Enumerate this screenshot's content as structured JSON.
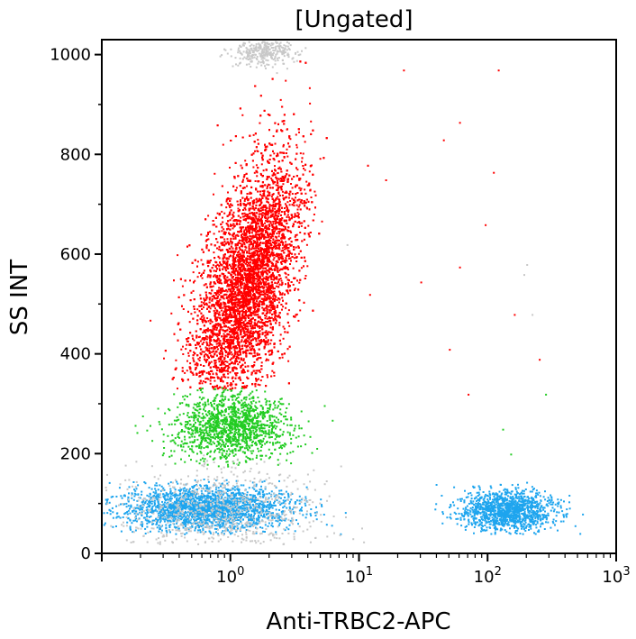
{
  "chart_data": {
    "type": "scatter",
    "title": "[Ungated]",
    "xlabel": "Anti-TRBC2-APC",
    "ylabel": "SS INT",
    "x_scale": "log",
    "xlim": [
      0.1,
      1000
    ],
    "ylim": [
      0,
      1030
    ],
    "x_ticks": [
      {
        "value": 1,
        "base": "10",
        "exp": "0"
      },
      {
        "value": 10,
        "base": "10",
        "exp": "1"
      },
      {
        "value": 100,
        "base": "10",
        "exp": "2"
      },
      {
        "value": 1000,
        "base": "10",
        "exp": "3"
      }
    ],
    "y_ticks": [
      {
        "value": 0,
        "label": "0"
      },
      {
        "value": 200,
        "label": "200"
      },
      {
        "value": 400,
        "label": "400"
      },
      {
        "value": 600,
        "label": "600"
      },
      {
        "value": 800,
        "label": "800"
      },
      {
        "value": 1000,
        "label": "1000"
      }
    ],
    "grid": false,
    "legend": "none",
    "populations": [
      {
        "color": "#ff0000",
        "n": 9000,
        "log_x_center": 0.12,
        "log_x_sd": 0.17,
        "y_center": 540,
        "y_sd": 125,
        "y_range": [
          330,
          1030
        ],
        "tilt": 0.0009
      },
      {
        "color": "#22cc22",
        "n": 1400,
        "log_x_center": 0.0,
        "log_x_sd": 0.22,
        "y_center": 255,
        "y_sd": 35,
        "y_range": [
          175,
          335
        ],
        "tilt": 0
      },
      {
        "color": "#1ea5ee",
        "n": 2200,
        "log_x_center": -0.2,
        "log_x_sd": 0.33,
        "y_center": 92,
        "y_sd": 22,
        "y_range": [
          40,
          150
        ],
        "tilt": 0
      },
      {
        "color": "#1ea5ee",
        "n": 1300,
        "log_x_center": 2.14,
        "log_x_sd": 0.18,
        "y_center": 88,
        "y_sd": 20,
        "y_range": [
          40,
          145
        ],
        "tilt": 0
      },
      {
        "color": "#c8c8c8",
        "n": 700,
        "log_x_center": -0.1,
        "log_x_sd": 0.4,
        "y_center": 80,
        "y_sd": 50,
        "y_range": [
          20,
          200
        ],
        "tilt": 0
      },
      {
        "color": "#c8c8c8",
        "n": 300,
        "log_x_center": 0.25,
        "log_x_sd": 0.12,
        "y_center": 1010,
        "y_sd": 15,
        "y_range": [
          960,
          1030
        ],
        "tilt": 0
      }
    ],
    "sparse_points": [
      {
        "x": 22,
        "y": 970,
        "c": "#ff0000"
      },
      {
        "x": 120,
        "y": 970,
        "c": "#ff0000"
      },
      {
        "x": 60,
        "y": 865,
        "c": "#ff0000"
      },
      {
        "x": 16,
        "y": 750,
        "c": "#ff0000"
      },
      {
        "x": 110,
        "y": 765,
        "c": "#ff0000"
      },
      {
        "x": 45,
        "y": 830,
        "c": "#ff0000"
      },
      {
        "x": 95,
        "y": 660,
        "c": "#ff0000"
      },
      {
        "x": 60,
        "y": 575,
        "c": "#ff0000"
      },
      {
        "x": 30,
        "y": 545,
        "c": "#ff0000"
      },
      {
        "x": 12,
        "y": 520,
        "c": "#ff0000"
      },
      {
        "x": 50,
        "y": 410,
        "c": "#ff0000"
      },
      {
        "x": 160,
        "y": 480,
        "c": "#ff0000"
      },
      {
        "x": 250,
        "y": 390,
        "c": "#ff0000"
      },
      {
        "x": 70,
        "y": 320,
        "c": "#ff0000"
      },
      {
        "x": 190,
        "y": 560,
        "c": "#c8c8c8"
      },
      {
        "x": 200,
        "y": 580,
        "c": "#c8c8c8"
      },
      {
        "x": 220,
        "y": 480,
        "c": "#c8c8c8"
      },
      {
        "x": 8,
        "y": 620,
        "c": "#c8c8c8"
      },
      {
        "x": 130,
        "y": 250,
        "c": "#22cc22"
      },
      {
        "x": 280,
        "y": 320,
        "c": "#22cc22"
      },
      {
        "x": 150,
        "y": 200,
        "c": "#22cc22"
      }
    ]
  }
}
